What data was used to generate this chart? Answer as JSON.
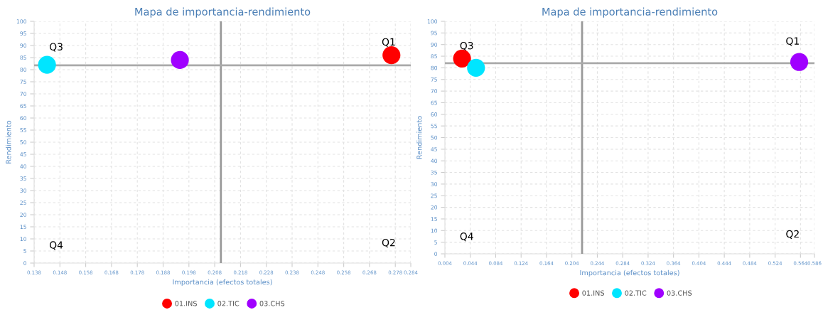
{
  "chart_data": [
    {
      "type": "scatter",
      "title": "Mapa de importancia-rendimiento",
      "xlabel": "Importancia (efectos totales)",
      "ylabel": "Rendimiento",
      "xlim": [
        0.138,
        0.284
      ],
      "xticks": [
        0.138,
        0.148,
        0.158,
        0.168,
        0.178,
        0.188,
        0.198,
        0.208,
        0.218,
        0.228,
        0.238,
        0.248,
        0.258,
        0.268,
        0.278,
        0.284
      ],
      "ylim": [
        0,
        100
      ],
      "yticks": [
        0,
        5,
        10,
        15,
        20,
        25,
        30,
        35,
        40,
        45,
        50,
        55,
        60,
        65,
        70,
        75,
        80,
        85,
        90,
        95,
        100
      ],
      "series": [
        {
          "name": "01.INS",
          "color": "#ff0000",
          "x": [
            0.2765
          ],
          "values": [
            86
          ]
        },
        {
          "name": "02.TIC",
          "color": "#00e5ff",
          "x": [
            0.143
          ],
          "values": [
            82
          ]
        },
        {
          "name": "03.CHS",
          "color": "#a000ff",
          "x": [
            0.1945
          ],
          "values": [
            84
          ]
        }
      ],
      "ref_lines": [
        {
          "axis": "x",
          "value": 0.2104,
          "color": "#999999"
        },
        {
          "axis": "y",
          "value": 81.8,
          "color": "#aaaaaa"
        }
      ],
      "annotations": [
        "Q3",
        "Q1",
        "Q4",
        "Q2"
      ],
      "marker": "circle",
      "grid": true,
      "legend": "bottom"
    },
    {
      "type": "scatter",
      "title": "Mapa de importancia-rendimiento",
      "xlabel": "Importancia (efectos totales)",
      "ylabel": "Rendimiento",
      "xlim": [
        0.004,
        0.586
      ],
      "xticks": [
        0.004,
        0.044,
        0.084,
        0.124,
        0.164,
        0.204,
        0.244,
        0.284,
        0.324,
        0.364,
        0.404,
        0.444,
        0.484,
        0.524,
        0.564,
        0.586
      ],
      "ylim": [
        0,
        100
      ],
      "yticks": [
        0,
        5,
        10,
        15,
        20,
        25,
        30,
        35,
        40,
        45,
        50,
        55,
        60,
        65,
        70,
        75,
        80,
        85,
        90,
        95,
        100
      ],
      "series": [
        {
          "name": "01.INS",
          "color": "#ff0000",
          "x": [
            0.031
          ],
          "values": [
            84
          ]
        },
        {
          "name": "02.TIC",
          "color": "#00e5ff",
          "x": [
            0.053
          ],
          "values": [
            80
          ]
        },
        {
          "name": "03.CHS",
          "color": "#a000ff",
          "x": [
            0.562
          ],
          "values": [
            82.5
          ]
        }
      ],
      "ref_lines": [
        {
          "axis": "x",
          "value": 0.22,
          "color": "#999999"
        },
        {
          "axis": "y",
          "value": 82,
          "color": "#aaaaaa"
        }
      ],
      "annotations": [
        "Q3",
        "Q1",
        "Q4",
        "Q2"
      ],
      "marker": "circle",
      "grid": true,
      "legend": "bottom"
    }
  ]
}
